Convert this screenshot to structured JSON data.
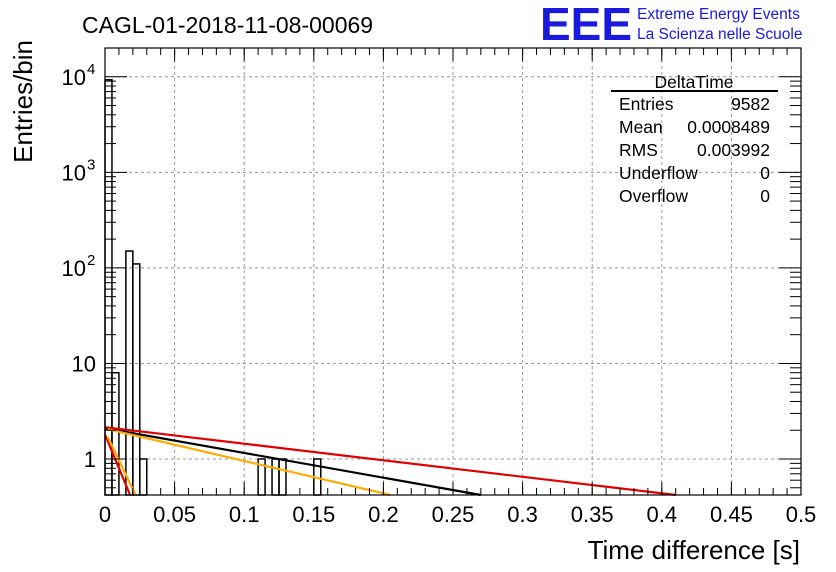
{
  "header": {
    "run_title": "CAGL-01-2018-11-08-00069",
    "logo_text": "EEE",
    "logo_line1": "Extreme Energy Events",
    "logo_line2": "La Scienza nelle Scuole",
    "logo_color": "#1a1adc"
  },
  "stats_box": {
    "title": "DeltaTime",
    "rows": [
      {
        "label": "Entries",
        "value": "9582"
      },
      {
        "label": "Mean",
        "value": "0.0008489"
      },
      {
        "label": "RMS",
        "value": "0.003992"
      },
      {
        "label": "Underflow",
        "value": "0"
      },
      {
        "label": "Overflow",
        "value": "0"
      }
    ]
  },
  "chart_data": {
    "type": "line",
    "xlabel": "Time difference [s]",
    "ylabel": "Entries/bin",
    "xlim": [
      0,
      0.5
    ],
    "ylim": [
      0.42,
      20000
    ],
    "yscale": "log",
    "grid": true,
    "x_ticks": [
      {
        "v": 0,
        "label": "0"
      },
      {
        "v": 0.05,
        "label": "0.05"
      },
      {
        "v": 0.1,
        "label": "0.1"
      },
      {
        "v": 0.15,
        "label": "0.15"
      },
      {
        "v": 0.2,
        "label": "0.2"
      },
      {
        "v": 0.25,
        "label": "0.25"
      },
      {
        "v": 0.3,
        "label": "0.3"
      },
      {
        "v": 0.35,
        "label": "0.35"
      },
      {
        "v": 0.4,
        "label": "0.4"
      },
      {
        "v": 0.45,
        "label": "0.45"
      },
      {
        "v": 0.5,
        "label": "0.5"
      }
    ],
    "y_ticks": [
      {
        "v": 1,
        "base": "1",
        "exp": ""
      },
      {
        "v": 10,
        "base": "10",
        "exp": ""
      },
      {
        "v": 100,
        "base": "10",
        "exp": "2"
      },
      {
        "v": 1000,
        "base": "10",
        "exp": "3"
      },
      {
        "v": 10000,
        "base": "10",
        "exp": "4"
      }
    ],
    "histogram": {
      "bin_width": 0.005,
      "bins": [
        {
          "x": 0.0,
          "y": 9300
        },
        {
          "x": 0.005,
          "y": 8
        },
        {
          "x": 0.01,
          "y": 0.42
        },
        {
          "x": 0.015,
          "y": 150
        },
        {
          "x": 0.02,
          "y": 110
        },
        {
          "x": 0.025,
          "y": 1
        },
        {
          "x": 0.11,
          "y": 1
        },
        {
          "x": 0.12,
          "y": 1
        },
        {
          "x": 0.125,
          "y": 1
        },
        {
          "x": 0.15,
          "y": 1
        }
      ],
      "color": "#000000"
    },
    "series": [
      {
        "x": [
          0,
          0.27
        ],
        "y": [
          2.1,
          0.42
        ],
        "color": "#000000"
      },
      {
        "x": [
          0,
          0.41
        ],
        "y": [
          2.15,
          0.42
        ],
        "color": "#e00000"
      },
      {
        "x": [
          0.002,
          0.205
        ],
        "y": [
          2.05,
          0.42
        ],
        "color": "#ffaa00"
      },
      {
        "x": [
          0,
          0.018
        ],
        "y": [
          1.8,
          0.42
        ],
        "color": "#e00000"
      },
      {
        "x": [
          0.002,
          0.022
        ],
        "y": [
          1.7,
          0.42
        ],
        "color": "#ffaa00"
      }
    ]
  }
}
